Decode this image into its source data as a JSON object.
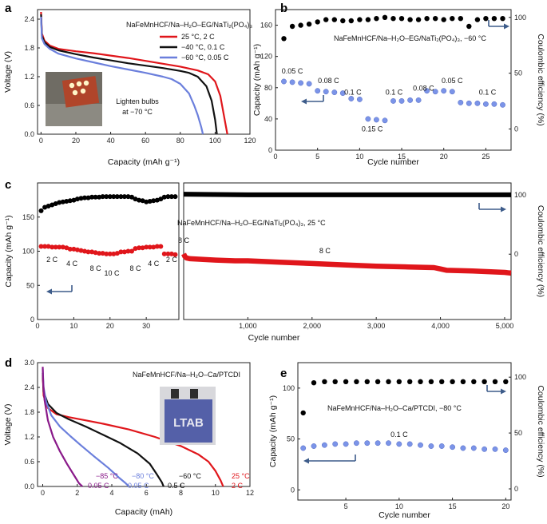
{
  "chart_data": [
    {
      "panel": "a",
      "type": "line",
      "title": "NaFeMnHCF/Na–H₂O–EG/NaTi₂(PO₄)₃",
      "xlabel": "Capacity (mAh g⁻¹)",
      "ylabel": "Voltage (V)",
      "xlim": [
        -2,
        120
      ],
      "ylim": [
        0,
        2.6
      ],
      "xticks": [
        0,
        20,
        40,
        60,
        80,
        100,
        120
      ],
      "yticks": [
        0,
        0.6,
        1.2,
        1.8,
        2.4
      ],
      "legend_position": "top-right",
      "annotation": "Lighten bulbs at −70 °C",
      "series": [
        {
          "name": "25 °C, 2 C",
          "color": "#e0161b",
          "x": [
            0,
            0.5,
            2,
            5,
            10,
            20,
            30,
            40,
            50,
            60,
            70,
            80,
            90,
            96,
            100,
            103,
            105,
            107
          ],
          "y": [
            2.55,
            2.1,
            1.95,
            1.85,
            1.78,
            1.73,
            1.69,
            1.64,
            1.59,
            1.53,
            1.47,
            1.41,
            1.33,
            1.25,
            1.1,
            0.8,
            0.4,
            0.0
          ]
        },
        {
          "name": "−40 °C, 0.1 C",
          "color": "#111111",
          "x": [
            0,
            0.5,
            2,
            5,
            10,
            20,
            30,
            40,
            50,
            60,
            70,
            80,
            85,
            90,
            95,
            98,
            100,
            101
          ],
          "y": [
            2.5,
            2.05,
            1.92,
            1.82,
            1.75,
            1.67,
            1.6,
            1.54,
            1.48,
            1.43,
            1.38,
            1.32,
            1.28,
            1.2,
            1.0,
            0.7,
            0.3,
            0.0
          ]
        },
        {
          "name": "−60 °C, 0.05 C",
          "color": "#6b7fdc",
          "x": [
            0,
            0.5,
            2,
            5,
            10,
            20,
            30,
            40,
            50,
            60,
            70,
            75,
            80,
            85,
            88,
            90,
            92,
            93
          ],
          "y": [
            2.45,
            2.0,
            1.88,
            1.78,
            1.68,
            1.58,
            1.5,
            1.42,
            1.35,
            1.28,
            1.2,
            1.15,
            1.05,
            0.85,
            0.6,
            0.4,
            0.15,
            0.0
          ]
        }
      ]
    },
    {
      "panel": "b",
      "type": "scatter",
      "title": "NaFeMnHCF/Na–H₂O–EG/NaTi₂(PO₄)₃, −60 °C",
      "xlabel": "Cycle number",
      "ylabel": "Capacity (mAh g⁻¹)",
      "y2label": "Coulombic efficiency (%)",
      "xlim": [
        0,
        28
      ],
      "ylim": [
        0,
        180
      ],
      "y2lim": [
        -19,
        107
      ],
      "xticks": [
        0,
        5,
        10,
        15,
        20,
        25
      ],
      "yticks": [
        0,
        40,
        80,
        120,
        160
      ],
      "y2ticks": [
        0,
        50,
        100
      ],
      "rate_labels": [
        {
          "text": "0.05 C",
          "x": 2.0,
          "y": 98
        },
        {
          "text": "0.08 C",
          "x": 6.3,
          "y": 86
        },
        {
          "text": "0.1 C",
          "x": 9.2,
          "y": 71
        },
        {
          "text": "0.15 C",
          "x": 11.5,
          "y": 24
        },
        {
          "text": "0.1 C",
          "x": 14.1,
          "y": 71
        },
        {
          "text": "0.08 C",
          "x": 17.6,
          "y": 76
        },
        {
          "text": "0.05 C",
          "x": 21.0,
          "y": 86
        },
        {
          "text": "0.1 C",
          "x": 25.2,
          "y": 71
        }
      ],
      "series": [
        {
          "name": "",
          "axis": "right",
          "color": "#000000",
          "x": [
            1,
            2,
            3,
            4,
            5,
            6,
            7,
            8,
            9,
            10,
            11,
            12,
            13,
            14,
            15,
            16,
            17,
            18,
            19,
            20,
            21,
            22,
            23,
            24,
            25,
            26,
            27
          ],
          "y": [
            81,
            92,
            93,
            94,
            96,
            98,
            98,
            97,
            97,
            98,
            98,
            99,
            100,
            99,
            99,
            98,
            98,
            99,
            99,
            98,
            99,
            99,
            92,
            98,
            99,
            99,
            99
          ]
        },
        {
          "name": "",
          "axis": "left",
          "color": "#7b94e8",
          "x": [
            1,
            2,
            3,
            4,
            5,
            6,
            7,
            8,
            9,
            10,
            11,
            12,
            13,
            14,
            15,
            16,
            17,
            18,
            19,
            20,
            21,
            22,
            23,
            24,
            25,
            26,
            27
          ],
          "y": [
            88,
            87,
            86,
            85,
            76,
            75,
            74,
            73,
            66,
            65,
            40,
            39,
            38,
            63,
            63,
            64,
            64,
            76,
            75,
            76,
            75,
            61,
            60,
            60,
            59,
            59,
            58
          ]
        }
      ]
    },
    {
      "panel": "c",
      "type": "scatter",
      "title": "NaFeMnHCF/Na–H₂O–EG/NaTi₂(PO₄)₃, 25 °C",
      "xlabel": "Cycle number",
      "ylabel": "Capacity (mAh g⁻¹)",
      "y2label": "Coulombic efficiency (%)",
      "ylim": [
        0,
        200
      ],
      "y2lim": [
        -110,
        120
      ],
      "yticks": [
        0,
        50,
        100,
        150
      ],
      "y2ticks": [
        0,
        100
      ],
      "segments": [
        {
          "xlim": [
            0,
            39
          ],
          "xticks": [
            0,
            10,
            20,
            30
          ]
        },
        {
          "xlim": [
            0,
            5100
          ],
          "xticks": [
            1000,
            2000,
            3000,
            4000,
            5000
          ],
          "xticklabels": [
            "1,000",
            "2,000",
            "3,000",
            "4,000",
            "5,000"
          ]
        }
      ],
      "rate_labels_left": [
        {
          "text": "2 C",
          "x": 4.0,
          "y": 88
        },
        {
          "text": "4 C",
          "x": 9.5,
          "y": 82
        },
        {
          "text": "8 C",
          "x": 16.0,
          "y": 75
        },
        {
          "text": "10 C",
          "x": 20.5,
          "y": 68
        },
        {
          "text": "8 C",
          "x": 27.0,
          "y": 75
        },
        {
          "text": "4 C",
          "x": 32.0,
          "y": 82
        },
        {
          "text": "2 C",
          "x": 37.0,
          "y": 88
        }
      ],
      "rate_labels_right": [
        {
          "text": "8 C",
          "x": 0,
          "y": 112
        },
        {
          "text": "8 C",
          "x": 2200,
          "y": 97
        }
      ],
      "capacity_rate_cycles": {
        "x": [
          1,
          2,
          3,
          4,
          5,
          6,
          7,
          8,
          9,
          10,
          11,
          12,
          13,
          14,
          15,
          16,
          17,
          18,
          19,
          20,
          21,
          22,
          23,
          24,
          25,
          26,
          27,
          28,
          29,
          30,
          31,
          32,
          33,
          34,
          35,
          36,
          37,
          38
        ],
        "y": [
          107,
          107,
          107,
          106,
          106,
          106,
          106,
          105,
          103,
          103,
          102,
          101,
          100,
          99,
          99,
          98,
          97,
          97,
          96,
          96,
          96,
          97,
          99,
          99,
          100,
          100,
          104,
          105,
          105,
          106,
          106,
          106,
          107,
          107,
          96,
          96,
          96,
          95
        ],
        "color": "#e0161b"
      },
      "ce_rate_cycles": {
        "x": [
          1,
          2,
          3,
          4,
          5,
          6,
          7,
          8,
          9,
          10,
          11,
          12,
          13,
          14,
          15,
          16,
          17,
          18,
          19,
          20,
          21,
          22,
          23,
          24,
          25,
          26,
          27,
          28,
          29,
          30,
          31,
          32,
          33,
          34,
          35,
          36,
          37,
          38
        ],
        "y": [
          73,
          79,
          81,
          83,
          85,
          87,
          88,
          89,
          90,
          91,
          93,
          94,
          95,
          95,
          96,
          96,
          96,
          97,
          97,
          97,
          97,
          97,
          97,
          97,
          97,
          96,
          93,
          91,
          90,
          88,
          89,
          90,
          91,
          93,
          96,
          97,
          97,
          97
        ],
        "color": "#000000"
      },
      "capacity_long": {
        "x": [
          0,
          20,
          50,
          100,
          300,
          500,
          800,
          1000,
          1500,
          2000,
          2500,
          3000,
          3500,
          3900,
          4000,
          4100,
          4500,
          5000,
          5100
        ],
        "y": [
          96,
          92,
          90,
          89,
          88,
          87,
          86,
          86,
          84,
          82,
          80,
          78,
          77,
          76,
          74,
          72,
          71,
          69,
          68
        ],
        "color": "#e0161b"
      },
      "ce_long": {
        "x": [
          0,
          1000,
          2000,
          3000,
          4000,
          5100
        ],
        "y": [
          101,
          100,
          100,
          100,
          100,
          100
        ],
        "color": "#000000"
      }
    },
    {
      "panel": "d",
      "type": "line",
      "title": "NaFeMnHCF/Na–H₂O–Ca/PTCDI",
      "xlabel": "Capacity (mAh)",
      "ylabel": "Voltage (V)",
      "xlim": [
        -0.3,
        12
      ],
      "ylim": [
        0,
        3.0
      ],
      "xticks": [
        0,
        2,
        4,
        6,
        8,
        10,
        12
      ],
      "yticks": [
        0,
        0.6,
        1.2,
        1.8,
        2.4,
        3.0
      ],
      "inset_label": "LTAB",
      "series": [
        {
          "name": "25 °C 2 C",
          "label_temp": "25 °C",
          "label_rate": "2 C",
          "color": "#e0161b",
          "x": [
            0,
            0.05,
            0.3,
            0.8,
            1.5,
            2.5,
            3.5,
            5,
            6.5,
            8,
            9,
            9.6,
            10,
            10.3,
            10.45
          ],
          "y": [
            2.7,
            2.2,
            1.9,
            1.75,
            1.68,
            1.6,
            1.52,
            1.38,
            1.2,
            0.98,
            0.78,
            0.6,
            0.38,
            0.15,
            0.0
          ]
        },
        {
          "name": "−60 °C 0.5 C",
          "label_temp": "−60 °C",
          "label_rate": "0.5 C",
          "color": "#111111",
          "x": [
            0,
            0.05,
            0.3,
            0.8,
            1.5,
            2.5,
            3.5,
            4.5,
            5.5,
            6.2,
            6.6,
            6.9,
            7.0
          ],
          "y": [
            2.75,
            2.3,
            2.0,
            1.78,
            1.63,
            1.45,
            1.25,
            1.05,
            0.8,
            0.55,
            0.3,
            0.1,
            0.0
          ]
        },
        {
          "name": "−80 °C 0.05 C",
          "label_temp": "−80 °C",
          "label_rate": "0.05 C",
          "color": "#6b7fdc",
          "x": [
            0,
            0.05,
            0.2,
            0.5,
            1.0,
            1.6,
            2.2,
            3.0,
            3.8,
            4.4,
            4.8,
            5.0
          ],
          "y": [
            2.85,
            2.4,
            2.05,
            1.72,
            1.45,
            1.22,
            1.0,
            0.72,
            0.45,
            0.22,
            0.08,
            0.0
          ]
        },
        {
          "name": "−85 °C 0.05 C",
          "label_temp": "−85 °C",
          "label_rate": "0.05 C",
          "color": "#8a1a8a",
          "x": [
            0,
            0.03,
            0.1,
            0.3,
            0.6,
            1.0,
            1.4,
            1.8,
            2.1,
            2.3
          ],
          "y": [
            2.9,
            2.5,
            2.1,
            1.6,
            1.2,
            0.85,
            0.55,
            0.28,
            0.08,
            0.0
          ]
        }
      ]
    },
    {
      "panel": "e",
      "type": "scatter",
      "title": "NaFeMnHCF/Na–H₂O–Ca/PTCDI, −80 °C",
      "xlabel": "Cycle number",
      "ylabel": "Capacity (mAh g⁻¹)",
      "y2label": "Coulombic efficiency (%)",
      "xlim": [
        0.5,
        20.5
      ],
      "ylim": [
        -10,
        125
      ],
      "y2lim": [
        -10,
        113
      ],
      "xticks": [
        5,
        10,
        15,
        20
      ],
      "yticks": [
        0,
        50,
        100
      ],
      "y2ticks": [
        0,
        50,
        100
      ],
      "rate_label": {
        "text": "0.1 C",
        "x": 10.0,
        "y": 52
      },
      "series": [
        {
          "name": "",
          "axis": "right",
          "color": "#000000",
          "x": [
            1,
            2,
            3,
            4,
            5,
            6,
            7,
            8,
            9,
            10,
            11,
            12,
            13,
            14,
            15,
            16,
            17,
            18,
            19,
            20
          ],
          "y": [
            68,
            95,
            96,
            96,
            96,
            96,
            96,
            96,
            96,
            96,
            96,
            96,
            96,
            96,
            96,
            96,
            96,
            96,
            96,
            96
          ]
        },
        {
          "name": "",
          "axis": "left",
          "color": "#7b94e8",
          "x": [
            1,
            2,
            3,
            4,
            5,
            6,
            7,
            8,
            9,
            10,
            11,
            12,
            13,
            14,
            15,
            16,
            17,
            18,
            19,
            20
          ],
          "y": [
            41,
            43,
            44,
            45,
            45,
            46,
            46,
            46,
            46,
            45,
            45,
            44,
            43,
            43,
            42,
            41,
            41,
            40,
            40,
            39
          ]
        }
      ]
    }
  ],
  "panels": {
    "a": {
      "letter": "a"
    },
    "b": {
      "letter": "b"
    },
    "c": {
      "letter": "c"
    },
    "d": {
      "letter": "d"
    },
    "e": {
      "letter": "e"
    }
  }
}
